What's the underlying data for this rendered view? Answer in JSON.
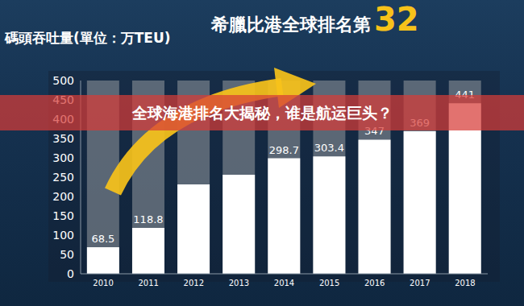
{
  "chart_data": {
    "type": "bar",
    "title": "希臘比港全球排名第32",
    "subtitle": "碼頭吞吐量(單位：万TEU)",
    "annotations": [
      "全球海港排名大揭秘，谁是航运巨头？"
    ],
    "categories": [
      "2010",
      "2011",
      "2012",
      "2013",
      "2014",
      "2015",
      "2016",
      "2017",
      "2018"
    ],
    "values": [
      68.5,
      118.8,
      231,
      256,
      298.7,
      303.4,
      347,
      369,
      441
    ],
    "value_labels": [
      "68.5",
      "118.8",
      null,
      null,
      "298.7",
      "303.4",
      "347",
      "369",
      "441"
    ],
    "color": "#ffffff",
    "ylim": [
      0,
      500
    ],
    "yticks": [
      0,
      50,
      100,
      150,
      200,
      250,
      300,
      350,
      400,
      450,
      500
    ],
    "grid": false,
    "data_labels": true
  }
}
